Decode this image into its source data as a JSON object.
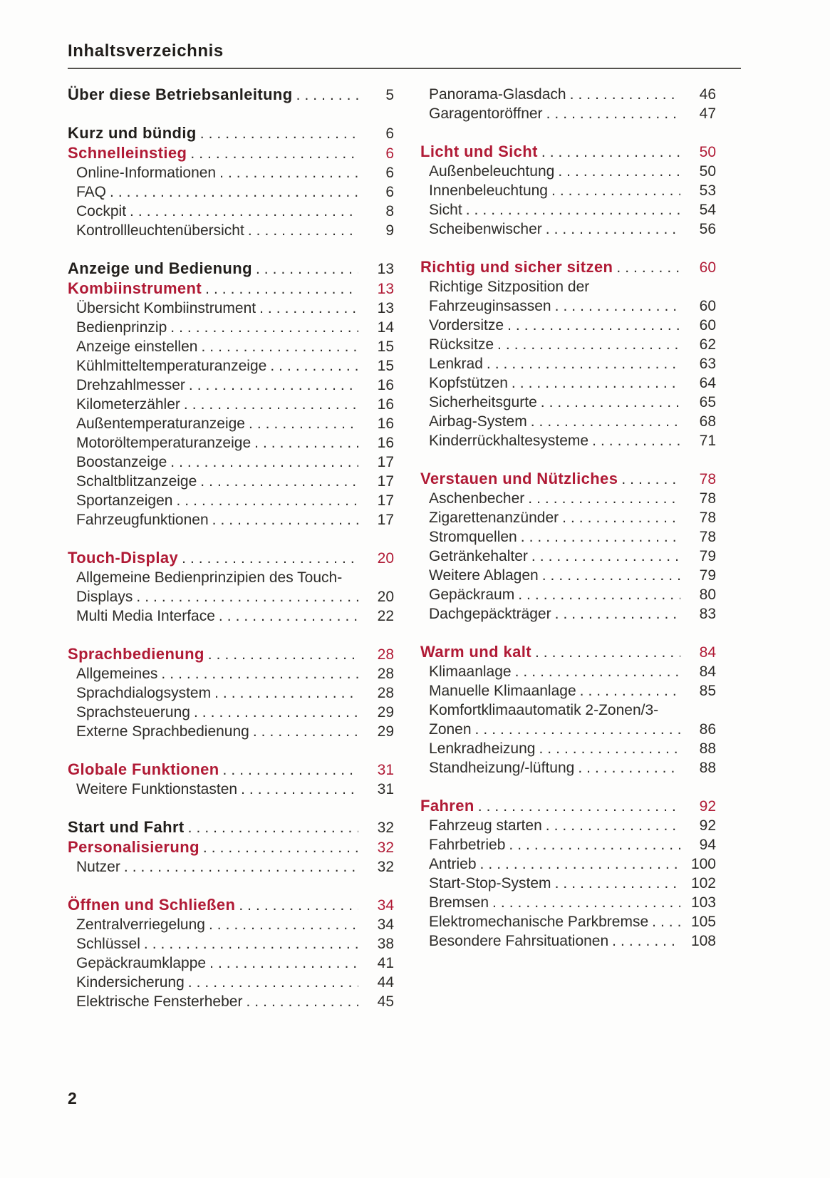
{
  "page": {
    "title": "Inhaltsverzeichnis",
    "page_number": "2",
    "accent_red": "#b01a35",
    "text_black": "#211e1b"
  },
  "toc": {
    "columns": [
      {
        "side": "left",
        "groups": [
          {
            "entries": [
              {
                "style": "h1",
                "lines": [
                  "Über diese Betriebsanleitung"
                ],
                "page": "5"
              }
            ]
          },
          {
            "entries": [
              {
                "style": "h1",
                "lines": [
                  "Kurz und bündig"
                ],
                "page": "6"
              },
              {
                "style": "h2",
                "lines": [
                  "Schnelleinstieg"
                ],
                "page": "6"
              },
              {
                "style": "sub",
                "lines": [
                  "Online-Informationen"
                ],
                "page": "6"
              },
              {
                "style": "sub",
                "lines": [
                  "FAQ"
                ],
                "page": "6"
              },
              {
                "style": "sub",
                "lines": [
                  "Cockpit"
                ],
                "page": "8"
              },
              {
                "style": "sub",
                "lines": [
                  "Kontrollleuchtenübersicht"
                ],
                "page": "9"
              }
            ]
          },
          {
            "entries": [
              {
                "style": "h1",
                "lines": [
                  "Anzeige und Bedienung"
                ],
                "page": "13"
              },
              {
                "style": "h2",
                "lines": [
                  "Kombiinstrument"
                ],
                "page": "13"
              },
              {
                "style": "sub",
                "lines": [
                  "Übersicht Kombiinstrument"
                ],
                "page": "13"
              },
              {
                "style": "sub",
                "lines": [
                  "Bedienprinzip"
                ],
                "page": "14"
              },
              {
                "style": "sub",
                "lines": [
                  "Anzeige einstellen"
                ],
                "page": "15"
              },
              {
                "style": "sub",
                "lines": [
                  "Kühlmitteltemperaturanzeige"
                ],
                "page": "15"
              },
              {
                "style": "sub",
                "lines": [
                  "Drehzahlmesser"
                ],
                "page": "16"
              },
              {
                "style": "sub",
                "lines": [
                  "Kilometerzähler"
                ],
                "page": "16"
              },
              {
                "style": "sub",
                "lines": [
                  "Außentemperaturanzeige"
                ],
                "page": "16"
              },
              {
                "style": "sub",
                "lines": [
                  "Motoröltemperaturanzeige"
                ],
                "page": "16"
              },
              {
                "style": "sub",
                "lines": [
                  "Boostanzeige"
                ],
                "page": "17"
              },
              {
                "style": "sub",
                "lines": [
                  "Schaltblitzanzeige"
                ],
                "page": "17"
              },
              {
                "style": "sub",
                "lines": [
                  "Sportanzeigen"
                ],
                "page": "17"
              },
              {
                "style": "sub",
                "lines": [
                  "Fahrzeugfunktionen"
                ],
                "page": "17"
              }
            ]
          },
          {
            "entries": [
              {
                "style": "h2",
                "lines": [
                  "Touch-Display"
                ],
                "page": "20"
              },
              {
                "style": "sub",
                "lines": [
                  "Allgemeine Bedienprinzipien des Touch-",
                  "Displays"
                ],
                "page": "20"
              },
              {
                "style": "sub",
                "lines": [
                  "Multi Media Interface"
                ],
                "page": "22"
              }
            ]
          },
          {
            "entries": [
              {
                "style": "h2",
                "lines": [
                  "Sprachbedienung"
                ],
                "page": "28"
              },
              {
                "style": "sub",
                "lines": [
                  "Allgemeines"
                ],
                "page": "28"
              },
              {
                "style": "sub",
                "lines": [
                  "Sprachdialogsystem"
                ],
                "page": "28"
              },
              {
                "style": "sub",
                "lines": [
                  "Sprachsteuerung"
                ],
                "page": "29"
              },
              {
                "style": "sub",
                "lines": [
                  "Externe Sprachbedienung"
                ],
                "page": "29"
              }
            ]
          },
          {
            "entries": [
              {
                "style": "h2",
                "lines": [
                  "Globale Funktionen"
                ],
                "page": "31"
              },
              {
                "style": "sub",
                "lines": [
                  "Weitere Funktionstasten"
                ],
                "page": "31"
              }
            ]
          },
          {
            "entries": [
              {
                "style": "h1",
                "lines": [
                  "Start und Fahrt"
                ],
                "page": "32"
              },
              {
                "style": "h2",
                "lines": [
                  "Personalisierung"
                ],
                "page": "32"
              },
              {
                "style": "sub",
                "lines": [
                  "Nutzer"
                ],
                "page": "32"
              }
            ]
          },
          {
            "entries": [
              {
                "style": "h2",
                "lines": [
                  "Öffnen und Schließen"
                ],
                "page": "34"
              },
              {
                "style": "sub",
                "lines": [
                  "Zentralverriegelung"
                ],
                "page": "34"
              },
              {
                "style": "sub",
                "lines": [
                  "Schlüssel"
                ],
                "page": "38"
              },
              {
                "style": "sub",
                "lines": [
                  "Gepäckraumklappe"
                ],
                "page": "41"
              },
              {
                "style": "sub",
                "lines": [
                  "Kindersicherung"
                ],
                "page": "44"
              },
              {
                "style": "sub",
                "lines": [
                  "Elektrische Fensterheber"
                ],
                "page": "45"
              }
            ]
          }
        ]
      },
      {
        "side": "right",
        "groups": [
          {
            "entries": [
              {
                "style": "sub",
                "lines": [
                  "Panorama-Glasdach"
                ],
                "page": "46"
              },
              {
                "style": "sub",
                "lines": [
                  "Garagentoröffner"
                ],
                "page": "47"
              }
            ]
          },
          {
            "entries": [
              {
                "style": "h2",
                "lines": [
                  "Licht und Sicht"
                ],
                "page": "50"
              },
              {
                "style": "sub",
                "lines": [
                  "Außenbeleuchtung"
                ],
                "page": "50"
              },
              {
                "style": "sub",
                "lines": [
                  "Innenbeleuchtung"
                ],
                "page": "53"
              },
              {
                "style": "sub",
                "lines": [
                  "Sicht"
                ],
                "page": "54"
              },
              {
                "style": "sub",
                "lines": [
                  "Scheibenwischer"
                ],
                "page": "56"
              }
            ]
          },
          {
            "entries": [
              {
                "style": "h2",
                "lines": [
                  "Richtig und sicher sitzen"
                ],
                "page": "60"
              },
              {
                "style": "sub",
                "lines": [
                  "Richtige Sitzposition der",
                  "Fahrzeuginsassen"
                ],
                "page": "60"
              },
              {
                "style": "sub",
                "lines": [
                  "Vordersitze"
                ],
                "page": "60"
              },
              {
                "style": "sub",
                "lines": [
                  "Rücksitze"
                ],
                "page": "62"
              },
              {
                "style": "sub",
                "lines": [
                  "Lenkrad"
                ],
                "page": "63"
              },
              {
                "style": "sub",
                "lines": [
                  "Kopfstützen"
                ],
                "page": "64"
              },
              {
                "style": "sub",
                "lines": [
                  "Sicherheitsgurte"
                ],
                "page": "65"
              },
              {
                "style": "sub",
                "lines": [
                  "Airbag-System"
                ],
                "page": "68"
              },
              {
                "style": "sub",
                "lines": [
                  "Kinderrückhaltesysteme"
                ],
                "page": "71"
              }
            ]
          },
          {
            "entries": [
              {
                "style": "h2",
                "lines": [
                  "Verstauen und Nützliches"
                ],
                "page": "78"
              },
              {
                "style": "sub",
                "lines": [
                  "Aschenbecher"
                ],
                "page": "78"
              },
              {
                "style": "sub",
                "lines": [
                  "Zigarettenanzünder"
                ],
                "page": "78"
              },
              {
                "style": "sub",
                "lines": [
                  "Stromquellen"
                ],
                "page": "78"
              },
              {
                "style": "sub",
                "lines": [
                  "Getränkehalter"
                ],
                "page": "79"
              },
              {
                "style": "sub",
                "lines": [
                  "Weitere Ablagen"
                ],
                "page": "79"
              },
              {
                "style": "sub",
                "lines": [
                  "Gepäckraum"
                ],
                "page": "80"
              },
              {
                "style": "sub",
                "lines": [
                  "Dachgepäckträger"
                ],
                "page": "83"
              }
            ]
          },
          {
            "entries": [
              {
                "style": "h2",
                "lines": [
                  "Warm und kalt"
                ],
                "page": "84"
              },
              {
                "style": "sub",
                "lines": [
                  "Klimaanlage"
                ],
                "page": "84"
              },
              {
                "style": "sub",
                "lines": [
                  "Manuelle Klimaanlage"
                ],
                "page": "85"
              },
              {
                "style": "sub",
                "lines": [
                  "Komfortklimaautomatik 2-Zonen/3-",
                  "Zonen"
                ],
                "page": "86"
              },
              {
                "style": "sub",
                "lines": [
                  "Lenkradheizung"
                ],
                "page": "88"
              },
              {
                "style": "sub",
                "lines": [
                  "Standheizung/-lüftung"
                ],
                "page": "88"
              }
            ]
          },
          {
            "entries": [
              {
                "style": "h2",
                "lines": [
                  "Fahren"
                ],
                "page": "92"
              },
              {
                "style": "sub",
                "lines": [
                  "Fahrzeug starten"
                ],
                "page": "92"
              },
              {
                "style": "sub",
                "lines": [
                  "Fahrbetrieb"
                ],
                "page": "94"
              },
              {
                "style": "sub",
                "lines": [
                  "Antrieb"
                ],
                "page": "100"
              },
              {
                "style": "sub",
                "lines": [
                  "Start-Stop-System"
                ],
                "page": "102"
              },
              {
                "style": "sub",
                "lines": [
                  "Bremsen"
                ],
                "page": "103"
              },
              {
                "style": "sub",
                "lines": [
                  "Elektromechanische Parkbremse"
                ],
                "page": "105"
              },
              {
                "style": "sub",
                "lines": [
                  "Besondere Fahrsituationen"
                ],
                "page": "108"
              }
            ]
          }
        ]
      }
    ]
  }
}
